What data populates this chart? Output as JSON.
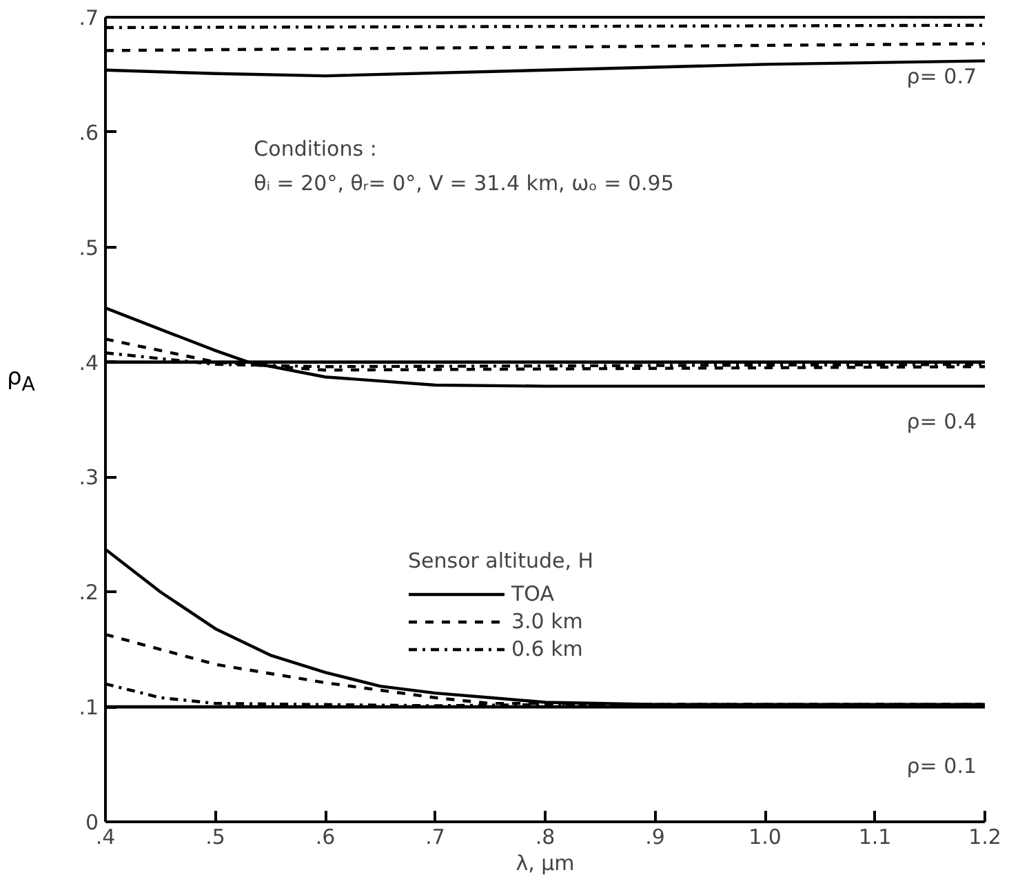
{
  "chart_data": {
    "type": "line",
    "xlabel": "λ, μm",
    "ylabel": "ρ$_{A}$",
    "legend_title": "Sensor altitude, H",
    "legend": "center",
    "grid": false,
    "xlim": [
      0.4,
      1.2
    ],
    "ylim": [
      0,
      0.7
    ],
    "xticks": [
      {
        "value": 0.4,
        "label": ".4"
      },
      {
        "value": 0.5,
        "label": ".5"
      },
      {
        "value": 0.6,
        "label": ".6"
      },
      {
        "value": 0.7,
        "label": ".7"
      },
      {
        "value": 0.8,
        "label": ".8"
      },
      {
        "value": 0.9,
        "label": ".9"
      },
      {
        "value": 1.0,
        "label": "1.0"
      },
      {
        "value": 1.1,
        "label": "1.1"
      },
      {
        "value": 1.2,
        "label": "1.2"
      }
    ],
    "yticks": [
      0,
      {
        "value": 0.1,
        "label": ".1"
      },
      {
        "value": 0.2,
        "label": ".2"
      },
      {
        "value": 0.3,
        "label": ".3"
      },
      {
        "value": 0.4,
        "label": ".4"
      },
      {
        "value": 0.5,
        "label": ".5"
      },
      {
        "value": 0.6,
        "label": ".6"
      },
      {
        "value": 0.7,
        "label": ".7"
      }
    ],
    "annotations": [
      "Conditions :",
      "θᵢ = 20°, θᵣ= 0°, V = 31.4 km, ωₒ = 0.95",
      "ρ= 0.7"
    ],
    "ref_lines": [
      {
        "axis": "y",
        "value": 0.4,
        "label": "ρ= 0.4"
      },
      {
        "axis": "y",
        "value": 0.1,
        "label": "ρ= 0.1"
      }
    ],
    "series": [
      {
        "name": "TOA",
        "color": "#000000",
        "line_style": "solid",
        "x": [
          0.4,
          0.45,
          0.5,
          0.55,
          0.6,
          0.65,
          0.7,
          0.75,
          0.8,
          0.9,
          1.0,
          1.2
        ],
        "values": [
          0.237,
          0.2,
          0.168,
          0.145,
          0.13,
          0.118,
          0.112,
          0.108,
          0.104,
          0.102,
          0.102,
          0.102
        ]
      },
      {
        "name": "3.0 km",
        "color": "#000000",
        "line_style": "dashed",
        "x": [
          0.4,
          0.5,
          0.6,
          0.7,
          0.75,
          0.8,
          0.9,
          1.2
        ],
        "values": [
          0.163,
          0.137,
          0.121,
          0.108,
          0.103,
          0.103,
          0.102,
          0.102
        ]
      },
      {
        "name": "0.6 km",
        "color": "#000000",
        "line_style": "dashdot",
        "x": [
          0.4,
          0.45,
          0.5,
          0.6,
          0.7,
          0.8,
          1.2
        ],
        "values": [
          0.12,
          0.108,
          0.103,
          0.102,
          0.101,
          0.102,
          0.102
        ]
      },
      {
        "color": "#000000",
        "line_style": "solid",
        "x": [
          0.4,
          0.5,
          0.53,
          0.6,
          0.7,
          0.8,
          1.2
        ],
        "values": [
          0.447,
          0.41,
          0.4,
          0.387,
          0.38,
          0.379,
          0.379
        ]
      },
      {
        "color": "#000000",
        "line_style": "dashed",
        "x": [
          0.4,
          0.5,
          0.6,
          0.8,
          1.2
        ],
        "values": [
          0.42,
          0.4,
          0.393,
          0.394,
          0.396
        ]
      },
      {
        "color": "#000000",
        "line_style": "dashdot",
        "x": [
          0.4,
          0.5,
          0.6,
          1.2
        ],
        "values": [
          0.408,
          0.398,
          0.396,
          0.398
        ]
      },
      {
        "color": "#000000",
        "line_style": "solid",
        "x": [
          0.4,
          0.5,
          0.6,
          0.8,
          1.0,
          1.2
        ],
        "values": [
          0.654,
          0.651,
          0.649,
          0.654,
          0.659,
          0.662
        ]
      },
      {
        "color": "#000000",
        "line_style": "dashed",
        "x": [
          0.4,
          0.8,
          1.2
        ],
        "values": [
          0.671,
          0.674,
          0.677
        ]
      },
      {
        "color": "#000000",
        "line_style": "dashdot",
        "x": [
          0.4,
          0.8,
          1.2
        ],
        "values": [
          0.691,
          0.692,
          0.693
        ]
      }
    ]
  }
}
